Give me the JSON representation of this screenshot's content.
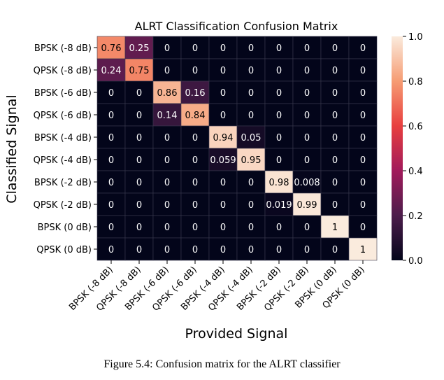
{
  "chart_data": {
    "type": "heatmap",
    "title": "ALRT Classification Confusion Matrix",
    "xlabel": "Provided Signal",
    "ylabel": "Classified Signal",
    "x_categories": [
      "BPSK (-8 dB)",
      "QPSK (-8 dB)",
      "BPSK (-6 dB)",
      "QPSK (-6 dB)",
      "BPSK (-4 dB)",
      "QPSK (-4 dB)",
      "BPSK (-2 dB)",
      "QPSK (-2 dB)",
      "BPSK (0 dB)",
      "QPSK (0 dB)"
    ],
    "y_categories": [
      "BPSK (-8 dB)",
      "QPSK (-8 dB)",
      "BPSK (-6 dB)",
      "QPSK (-6 dB)",
      "BPSK (-4 dB)",
      "QPSK (-4 dB)",
      "BPSK (-2 dB)",
      "QPSK (-2 dB)",
      "BPSK (0 dB)",
      "QPSK (0 dB)"
    ],
    "matrix": [
      [
        "0.76",
        "0.25",
        "0",
        "0",
        "0",
        "0",
        "0",
        "0",
        "0",
        "0"
      ],
      [
        "0.24",
        "0.75",
        "0",
        "0",
        "0",
        "0",
        "0",
        "0",
        "0",
        "0"
      ],
      [
        "0",
        "0",
        "0.86",
        "0.16",
        "0",
        "0",
        "0",
        "0",
        "0",
        "0"
      ],
      [
        "0",
        "0",
        "0.14",
        "0.84",
        "0",
        "0",
        "0",
        "0",
        "0",
        "0"
      ],
      [
        "0",
        "0",
        "0",
        "0",
        "0.94",
        "0.05",
        "0",
        "0",
        "0",
        "0"
      ],
      [
        "0",
        "0",
        "0",
        "0",
        "0.059",
        "0.95",
        "0",
        "0",
        "0",
        "0"
      ],
      [
        "0",
        "0",
        "0",
        "0",
        "0",
        "0",
        "0.98",
        "0.008",
        "0",
        "0"
      ],
      [
        "0",
        "0",
        "0",
        "0",
        "0",
        "0",
        "0.019",
        "0.99",
        "0",
        "0"
      ],
      [
        "0",
        "0",
        "0",
        "0",
        "0",
        "0",
        "0",
        "0",
        "1",
        "0"
      ],
      [
        "0",
        "0",
        "0",
        "0",
        "0",
        "0",
        "0",
        "0",
        "0",
        "1"
      ]
    ],
    "colorbar": {
      "range": [
        0.0,
        1.0
      ],
      "ticks": [
        "0.0",
        "0.2",
        "0.4",
        "0.6",
        "0.8",
        "1.0"
      ],
      "colormap": "rocket",
      "colormap_stops": [
        "#03051a",
        "#4c1d4b",
        "#a11a5b",
        "#e83f3f",
        "#f69c73",
        "#faebdd"
      ]
    }
  },
  "caption": "Figure 5.4: Confusion matrix for the ALRT classifier"
}
